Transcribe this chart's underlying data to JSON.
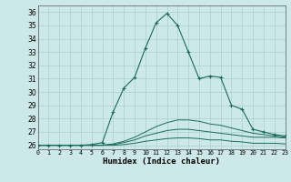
{
  "xlabel": "Humidex (Indice chaleur)",
  "xlim": [
    0,
    23
  ],
  "ylim": [
    25.7,
    36.5
  ],
  "xticks": [
    0,
    1,
    2,
    3,
    4,
    5,
    6,
    7,
    8,
    9,
    10,
    11,
    12,
    13,
    14,
    15,
    16,
    17,
    18,
    19,
    20,
    21,
    22,
    23
  ],
  "yticks": [
    26,
    27,
    28,
    29,
    30,
    31,
    32,
    33,
    34,
    35,
    36
  ],
  "background_color": "#cde8e8",
  "grid_color": "#aacfcf",
  "line_color": "#1a6b5a",
  "line1": [
    26.0,
    26.0,
    26.0,
    26.0,
    26.0,
    26.05,
    26.2,
    28.5,
    30.3,
    31.1,
    33.3,
    35.2,
    35.9,
    35.0,
    33.0,
    31.0,
    31.2,
    31.1,
    29.0,
    28.7,
    27.2,
    27.0,
    26.8,
    26.7
  ],
  "line2": [
    26.0,
    26.0,
    26.0,
    26.0,
    26.0,
    26.0,
    26.0,
    26.1,
    26.3,
    26.6,
    27.0,
    27.4,
    27.7,
    27.9,
    27.9,
    27.8,
    27.6,
    27.5,
    27.3,
    27.1,
    26.9,
    26.8,
    26.7,
    26.6
  ],
  "line3": [
    26.0,
    26.0,
    26.0,
    26.0,
    26.0,
    26.0,
    26.0,
    26.05,
    26.2,
    26.4,
    26.7,
    26.9,
    27.1,
    27.2,
    27.2,
    27.1,
    27.0,
    26.9,
    26.8,
    26.7,
    26.6,
    26.6,
    26.6,
    26.55
  ],
  "line4": [
    26.0,
    26.0,
    26.0,
    26.0,
    26.0,
    26.0,
    26.0,
    26.0,
    26.05,
    26.15,
    26.3,
    26.4,
    26.5,
    26.55,
    26.55,
    26.5,
    26.4,
    26.4,
    26.3,
    26.25,
    26.15,
    26.15,
    26.15,
    26.1
  ]
}
